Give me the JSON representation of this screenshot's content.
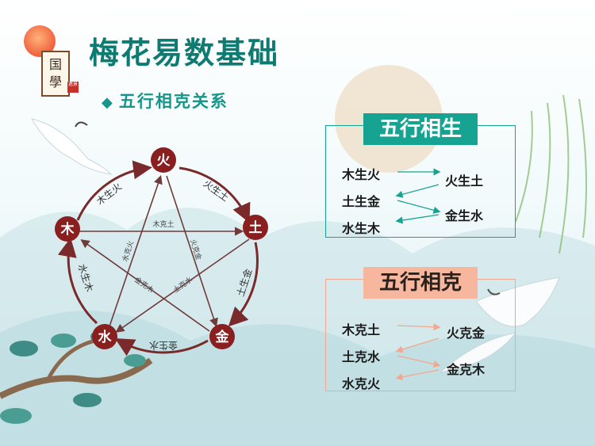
{
  "title": "梅花易数基础",
  "subtitle": "五行相克关系",
  "logo": {
    "chars": [
      "国",
      "學"
    ],
    "seal": "遮景"
  },
  "diagram": {
    "elements": {
      "fire": "火",
      "earth": "土",
      "metal": "金",
      "water": "水",
      "wood": "木"
    },
    "outer": {
      "wood_fire": "木生火",
      "fire_earth": "火生土",
      "earth_metal": "土生金",
      "metal_water": "金生水",
      "water_wood": "水生木"
    },
    "inner": {
      "wood_earth": "木克土",
      "fire_metal": "火克金",
      "earth_water": "土克水",
      "metal_wood": "金克木",
      "water_fire": "水克火"
    }
  },
  "sheng_panel": {
    "header": "五行相生",
    "left": [
      "木生火",
      "土生金",
      "水生木"
    ],
    "right": [
      "火生土",
      "金生水"
    ]
  },
  "ke_panel": {
    "header": "五行相克",
    "left": [
      "木克土",
      "土克水",
      "水克火"
    ],
    "right": [
      "火克金",
      "金克木"
    ]
  },
  "colors": {
    "title": "#0e7b72",
    "node": "#8a1f1f",
    "sheng": "#17a391",
    "ke": "#f3a78e"
  }
}
